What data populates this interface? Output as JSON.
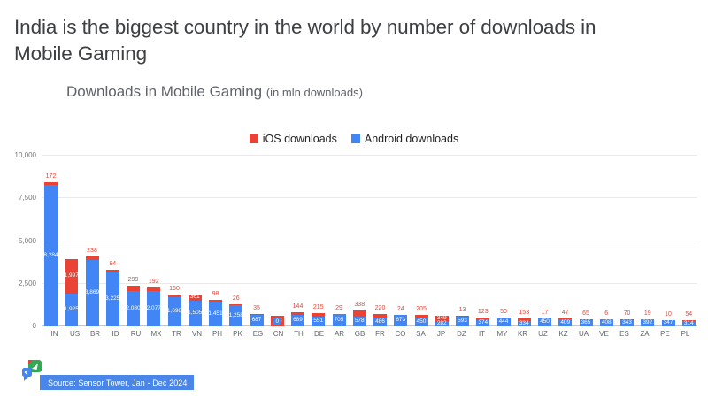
{
  "header": {
    "title": "India is the biggest country in the world by number of downloads in Mobile Gaming"
  },
  "footer": {
    "source": "Source: Sensor Tower, Jan - Dec 2024"
  },
  "colors": {
    "ios_red": "#ea4335",
    "android_blue": "#4285f4",
    "source_chip_blue": "#4a86e8",
    "title_gray": "#3c4043",
    "subtitle_gray": "#5f6368"
  },
  "chart_data": {
    "type": "bar",
    "stacked": true,
    "title": "Downloads in Mobile Gaming",
    "unit_note": "(in mln downloads)",
    "legend_position": "top",
    "grid": true,
    "ylabel": "",
    "xlabel": "",
    "ylim": [
      0,
      10000
    ],
    "yticks": [
      0,
      2500,
      5000,
      7500,
      10000
    ],
    "categories": [
      "IN",
      "US",
      "BR",
      "ID",
      "RU",
      "MX",
      "TR",
      "VN",
      "PH",
      "PK",
      "EG",
      "CN",
      "TH",
      "DE",
      "AR",
      "GB",
      "FR",
      "CO",
      "SA",
      "JP",
      "DZ",
      "IT",
      "MY",
      "KR",
      "UZ",
      "KZ",
      "UA",
      "VE",
      "ES",
      "ZA",
      "PE",
      "PL"
    ],
    "series": [
      {
        "name": "iOS downloads",
        "color": "#ea4335",
        "values": [
          172,
          1997,
          238,
          84,
          299,
          192,
          160,
          361,
          98,
          26,
          35,
          613,
          144,
          215,
          29,
          338,
          220,
          24,
          205,
          349,
          13,
          123,
          50,
          153,
          17,
          47,
          65,
          6,
          70,
          19,
          10,
          54
        ]
      },
      {
        "name": "Android downloads",
        "color": "#4285f4",
        "values": [
          8284,
          1925,
          3869,
          3225,
          2080,
          2077,
          1698,
          1505,
          1451,
          1258,
          687,
          0,
          689,
          551,
          705,
          578,
          486,
          673,
          450,
          282,
          593,
          374,
          444,
          334,
          450,
          409,
          365,
          408,
          343,
          392,
          347,
          314
        ]
      }
    ],
    "ios_label_inside": [
      "US",
      "VN",
      "CN",
      "JP"
    ]
  }
}
